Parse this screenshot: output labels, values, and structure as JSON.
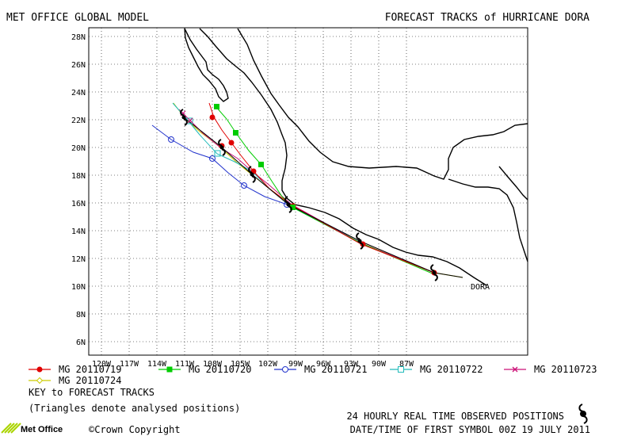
{
  "header": {
    "left_title": "MET OFFICE GLOBAL MODEL",
    "right_title": "FORECAST TRACKS of HURRICANE DORA"
  },
  "map": {
    "lat_labels": [
      "28N",
      "26N",
      "24N",
      "22N",
      "20N",
      "18N",
      "16N",
      "14N",
      "12N",
      "10N",
      "8N",
      "6N"
    ],
    "lon_labels": [
      "120W",
      "117W",
      "114W",
      "111W",
      "108W",
      "105W",
      "102W",
      "99W",
      "96W",
      "93W",
      "90W",
      "87W"
    ],
    "storm_label": "DORA",
    "grid": true
  },
  "legend": {
    "title": "KEY to FORECAST TRACKS",
    "subtitle": "(Triangles denote analysed positions)",
    "items": [
      {
        "label": "MG 20110719",
        "color": "#e00000",
        "marker": "filled-circle"
      },
      {
        "label": "MG 20110720",
        "color": "#00cc00",
        "marker": "filled-square"
      },
      {
        "label": "MG 20110721",
        "color": "#2233cc",
        "marker": "open-circle"
      },
      {
        "label": "MG 20110722",
        "color": "#22bbbb",
        "marker": "open-square"
      },
      {
        "label": "MG 20110723",
        "color": "#cc1177",
        "marker": "cross"
      },
      {
        "label": "MG 20110724",
        "color": "#cccc00",
        "marker": "diamond"
      }
    ]
  },
  "footer": {
    "observed_label": "24 HOURLY REAL TIME OBSERVED POSITIONS",
    "first_symbol_label": "DATE/TIME OF FIRST SYMBOL 00Z 19 JULY 2011",
    "copyright": "©Crown Copyright",
    "logo_text": "Met Office",
    "hurricane_icon": "hurricane-symbol-icon"
  }
}
